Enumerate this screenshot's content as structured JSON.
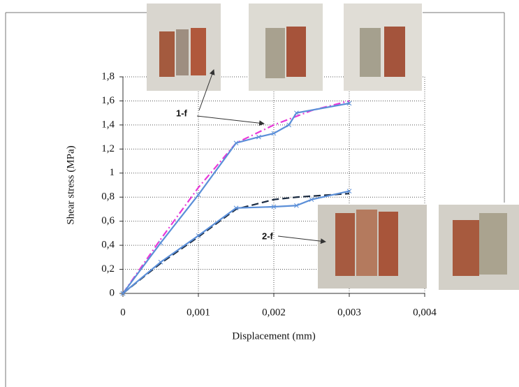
{
  "chart_data": {
    "type": "line",
    "xlabel": "Displacement (mm)",
    "ylabel": "Shear stress (MPa)",
    "xlim": [
      0,
      0.004
    ],
    "ylim": [
      0,
      1.8
    ],
    "xticks": [
      0,
      {
        "value": 0.001,
        "label": "0,001"
      },
      {
        "value": 0.002,
        "label": "0,002"
      },
      {
        "value": 0.003,
        "label": "0,003"
      },
      {
        "value": 0.004,
        "label": "0,004"
      }
    ],
    "yticks": [
      0,
      {
        "value": 0.2,
        "label": "0,2"
      },
      {
        "value": 0.4,
        "label": "0,4"
      },
      {
        "value": 0.6,
        "label": "0,6"
      },
      {
        "value": 0.8,
        "label": "0,8"
      },
      1,
      {
        "value": 1.2,
        "label": "1,2"
      },
      {
        "value": 1.4,
        "label": "1,4"
      },
      {
        "value": 1.6,
        "label": "1,6"
      },
      {
        "value": 1.8,
        "label": "1,8"
      }
    ],
    "grid": true,
    "annotations": [
      "1-f",
      "2-f"
    ],
    "series": [
      {
        "color": "#e838d8",
        "dash": "dashdot",
        "markers": false,
        "x": [
          0,
          0.0005,
          0.001,
          0.0015,
          0.002,
          0.0025,
          0.003
        ],
        "values": [
          0,
          0.45,
          0.88,
          1.25,
          1.4,
          1.52,
          1.6
        ]
      },
      {
        "color": "#5b8fd8",
        "dash": "solid",
        "markers": true,
        "x": [
          0,
          0.0005,
          0.001,
          0.0015,
          0.0018,
          0.002,
          0.0022,
          0.0023,
          0.003
        ],
        "values": [
          0,
          0.42,
          0.82,
          1.25,
          1.3,
          1.33,
          1.4,
          1.5,
          1.58
        ]
      },
      {
        "color": "#1a2a40",
        "dash": "dash",
        "markers": false,
        "x": [
          0,
          0.0005,
          0.001,
          0.0015,
          0.002,
          0.0023,
          0.003
        ],
        "values": [
          0,
          0.25,
          0.47,
          0.7,
          0.78,
          0.8,
          0.83
        ]
      },
      {
        "color": "#5b8fd8",
        "dash": "solid",
        "markers": true,
        "x": [
          0,
          0.0005,
          0.001,
          0.0015,
          0.002,
          0.0023,
          0.0025,
          0.003
        ],
        "values": [
          0,
          0.26,
          0.48,
          0.71,
          0.72,
          0.73,
          0.78,
          0.85
        ]
      }
    ]
  }
}
